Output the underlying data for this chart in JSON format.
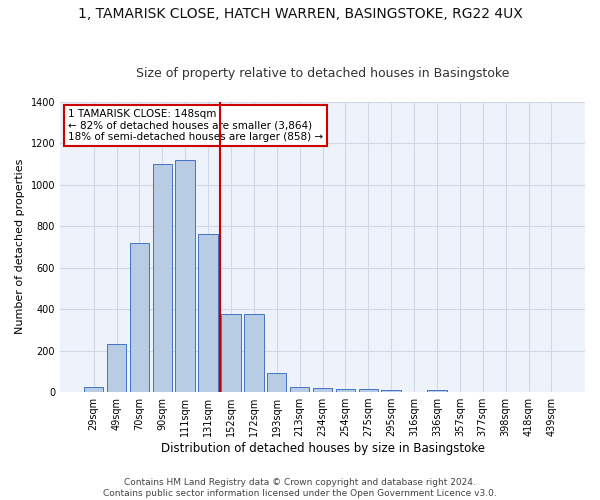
{
  "title1": "1, TAMARISK CLOSE, HATCH WARREN, BASINGSTOKE, RG22 4UX",
  "title2": "Size of property relative to detached houses in Basingstoke",
  "xlabel": "Distribution of detached houses by size in Basingstoke",
  "ylabel": "Number of detached properties",
  "categories": [
    "29sqm",
    "49sqm",
    "70sqm",
    "90sqm",
    "111sqm",
    "131sqm",
    "152sqm",
    "172sqm",
    "193sqm",
    "213sqm",
    "234sqm",
    "254sqm",
    "275sqm",
    "295sqm",
    "316sqm",
    "336sqm",
    "357sqm",
    "377sqm",
    "398sqm",
    "418sqm",
    "439sqm"
  ],
  "values": [
    25,
    230,
    720,
    1100,
    1120,
    760,
    375,
    375,
    90,
    25,
    20,
    17,
    14,
    8,
    0,
    10,
    0,
    0,
    0,
    0,
    0
  ],
  "bar_color": "#b8cce4",
  "bar_edge_color": "#4472c4",
  "annotation_text1": "1 TAMARISK CLOSE: 148sqm",
  "annotation_text2": "← 82% of detached houses are smaller (3,864)",
  "annotation_text3": "18% of semi-detached houses are larger (858) →",
  "annotation_box_color": "#ffffff",
  "annotation_box_edge": "#cc0000",
  "vline_color": "#cc0000",
  "vline_x": 5.5,
  "grid_color": "#d0d8e8",
  "background_color": "#eef2fa",
  "ylim": [
    0,
    1400
  ],
  "yticks": [
    0,
    200,
    400,
    600,
    800,
    1000,
    1200,
    1400
  ],
  "footnote1": "Contains HM Land Registry data © Crown copyright and database right 2024.",
  "footnote2": "Contains public sector information licensed under the Open Government Licence v3.0.",
  "title1_fontsize": 10,
  "title2_fontsize": 9,
  "xlabel_fontsize": 8.5,
  "ylabel_fontsize": 8,
  "tick_fontsize": 7,
  "annotation_fontsize": 7.5,
  "footnote_fontsize": 6.5
}
